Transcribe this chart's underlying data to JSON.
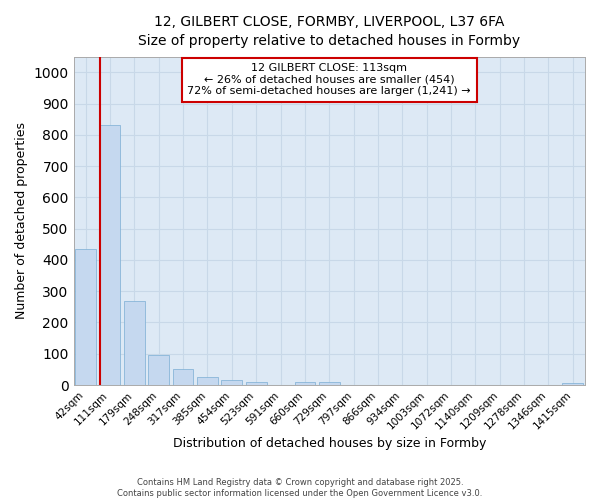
{
  "title_line1": "12, GILBERT CLOSE, FORMBY, LIVERPOOL, L37 6FA",
  "title_line2": "Size of property relative to detached houses in Formby",
  "xlabel": "Distribution of detached houses by size in Formby",
  "ylabel": "Number of detached properties",
  "bar_labels": [
    "42sqm",
    "111sqm",
    "179sqm",
    "248sqm",
    "317sqm",
    "385sqm",
    "454sqm",
    "523sqm",
    "591sqm",
    "660sqm",
    "729sqm",
    "797sqm",
    "866sqm",
    "934sqm",
    "1003sqm",
    "1072sqm",
    "1140sqm",
    "1209sqm",
    "1278sqm",
    "1346sqm",
    "1415sqm"
  ],
  "bar_values": [
    436,
    830,
    270,
    95,
    50,
    25,
    17,
    10,
    1,
    10,
    10,
    1,
    0,
    0,
    0,
    0,
    0,
    0,
    0,
    0,
    8
  ],
  "bar_color": "#c5d8ef",
  "bar_edge_color": "#7aadd4",
  "vline_color": "#cc0000",
  "annotation_text": "12 GILBERT CLOSE: 113sqm\n← 26% of detached houses are smaller (454)\n72% of semi-detached houses are larger (1,241) →",
  "annotation_box_color": "#cc0000",
  "ylim": [
    0,
    1050
  ],
  "yticks": [
    0,
    100,
    200,
    300,
    400,
    500,
    600,
    700,
    800,
    900,
    1000
  ],
  "grid_color": "#c8d8e8",
  "bg_color": "#dde9f5",
  "footer_line1": "Contains HM Land Registry data © Crown copyright and database right 2025.",
  "footer_line2": "Contains public sector information licensed under the Open Government Licence v3.0."
}
